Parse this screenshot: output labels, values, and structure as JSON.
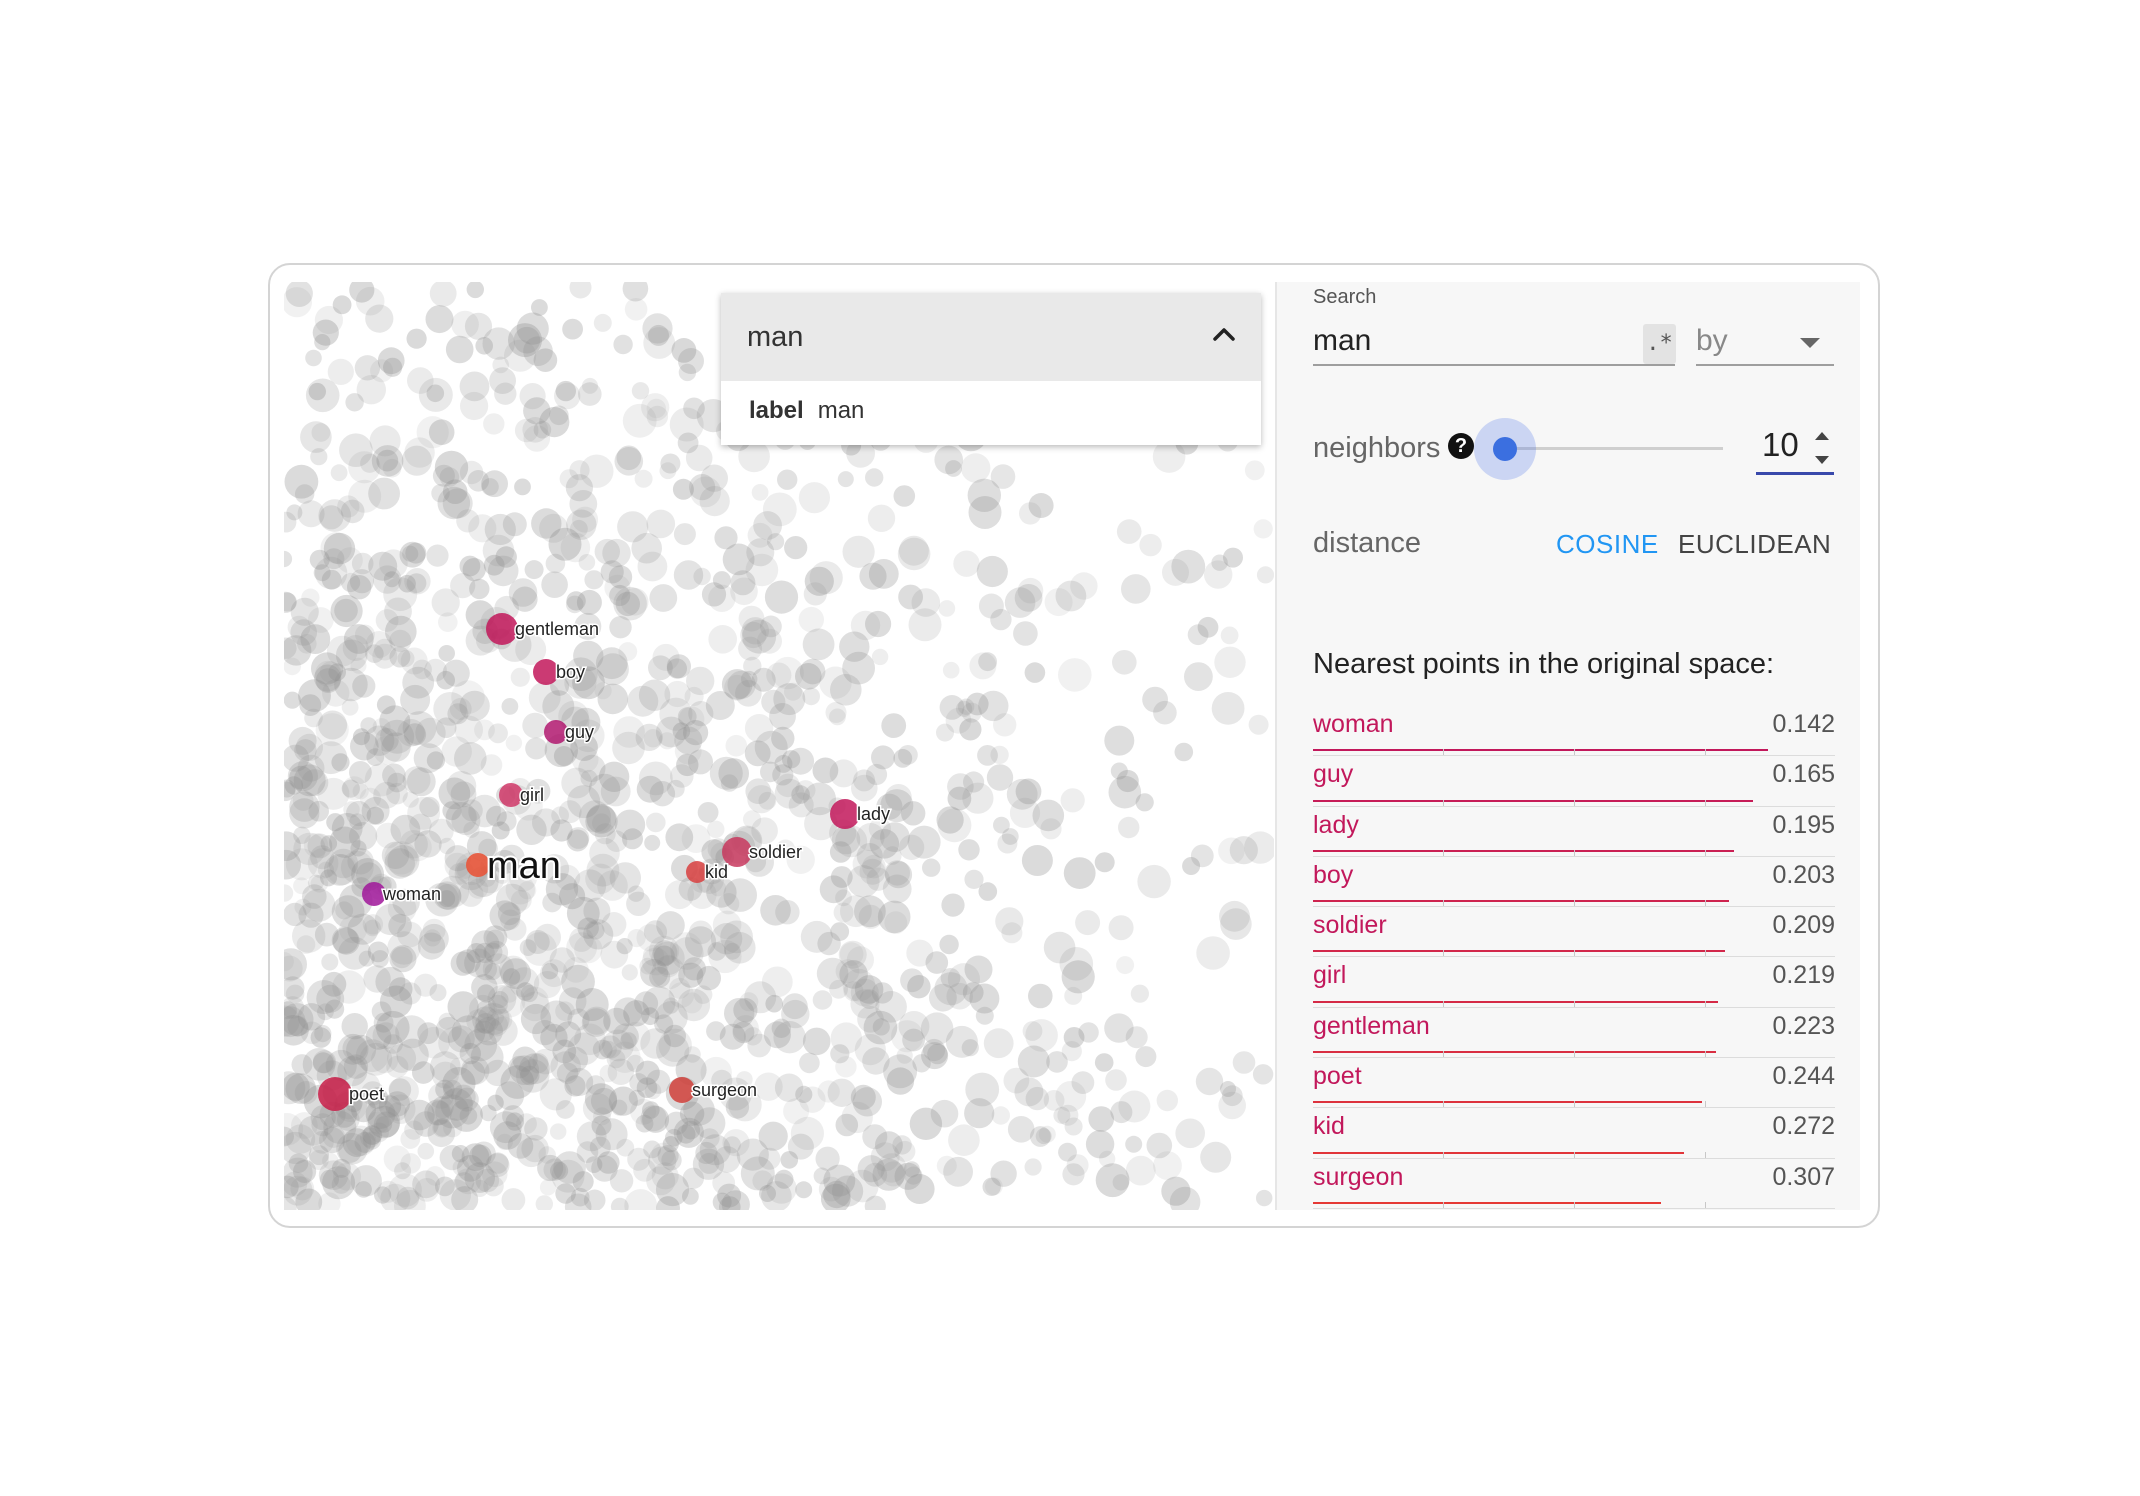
{
  "search": {
    "label": "Search",
    "query": "man",
    "regex_label": ".*",
    "by_label": "by"
  },
  "dropdown": {
    "query": "man",
    "option_key": "label",
    "option_value": "man"
  },
  "neighbors": {
    "label": "neighbors",
    "help": "?",
    "value": "10",
    "slider_fraction": 0.0
  },
  "distance": {
    "label": "distance",
    "cosine": "COSINE",
    "euclidean": "EUCLIDEAN",
    "selected": "COSINE"
  },
  "nearest": {
    "title": "Nearest points in the original space:",
    "items": [
      {
        "word": "woman",
        "value": "0.142"
      },
      {
        "word": "guy",
        "value": "0.165"
      },
      {
        "word": "lady",
        "value": "0.195"
      },
      {
        "word": "boy",
        "value": "0.203"
      },
      {
        "word": "soldier",
        "value": "0.209"
      },
      {
        "word": "girl",
        "value": "0.219"
      },
      {
        "word": "gentleman",
        "value": "0.223"
      },
      {
        "word": "poet",
        "value": "0.244"
      },
      {
        "word": "kid",
        "value": "0.272"
      },
      {
        "word": "surgeon",
        "value": "0.307"
      }
    ]
  },
  "projection": {
    "selected_label": "man",
    "labels": [
      "gentleman",
      "boy",
      "guy",
      "girl",
      "lady",
      "soldier",
      "kid",
      "woman",
      "poet",
      "surgeon"
    ]
  },
  "colors": {
    "accent": "#2196f3",
    "word": "#c2185b",
    "slider": "#3b6fe0",
    "point_grey": "#9e9e9e"
  }
}
